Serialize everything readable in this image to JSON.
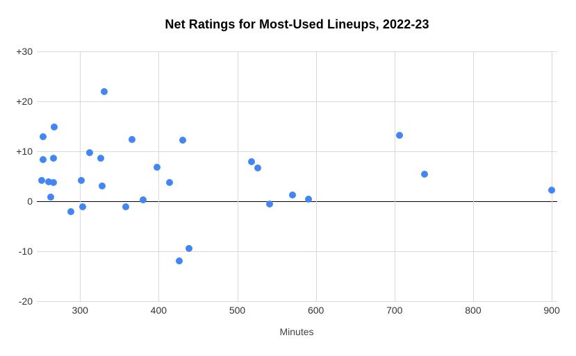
{
  "chart_data": {
    "type": "scatter",
    "title": "Net Ratings for Most-Used Lineups, 2022-23",
    "xlabel": "Minutes",
    "ylabel": "",
    "legend": "none",
    "grid": true,
    "xlim": [
      245,
      907
    ],
    "ylim": [
      -20,
      30
    ],
    "x_ticks": [
      {
        "value": 300,
        "label": "300"
      },
      {
        "value": 400,
        "label": "400"
      },
      {
        "value": 500,
        "label": "500"
      },
      {
        "value": 600,
        "label": "600"
      },
      {
        "value": 700,
        "label": "700"
      },
      {
        "value": 800,
        "label": "800"
      },
      {
        "value": 900,
        "label": "900"
      }
    ],
    "y_ticks": [
      {
        "value": 30,
        "label": "+30"
      },
      {
        "value": 20,
        "label": "+20"
      },
      {
        "value": 10,
        "label": "+10"
      },
      {
        "value": 0,
        "label": "0"
      },
      {
        "value": -10,
        "label": "-10"
      },
      {
        "value": -20,
        "label": "-20"
      }
    ],
    "series": [
      {
        "name": "Net Rating",
        "points": [
          {
            "x": 251,
            "y": 4.1
          },
          {
            "x": 253,
            "y": 12.9
          },
          {
            "x": 253,
            "y": 8.3
          },
          {
            "x": 260,
            "y": 3.9
          },
          {
            "x": 263,
            "y": 0.8
          },
          {
            "x": 267,
            "y": 14.8
          },
          {
            "x": 266,
            "y": 8.6
          },
          {
            "x": 266,
            "y": 3.7
          },
          {
            "x": 288,
            "y": -2.1
          },
          {
            "x": 302,
            "y": 4.1
          },
          {
            "x": 303,
            "y": -1.1
          },
          {
            "x": 312,
            "y": 9.7
          },
          {
            "x": 326,
            "y": 8.6
          },
          {
            "x": 328,
            "y": 3.0
          },
          {
            "x": 331,
            "y": 21.9
          },
          {
            "x": 358,
            "y": -1.1
          },
          {
            "x": 366,
            "y": 12.4
          },
          {
            "x": 380,
            "y": 0.3
          },
          {
            "x": 398,
            "y": 6.8
          },
          {
            "x": 414,
            "y": 3.8
          },
          {
            "x": 426,
            "y": -11.9
          },
          {
            "x": 431,
            "y": 12.2
          },
          {
            "x": 439,
            "y": -9.5
          },
          {
            "x": 518,
            "y": 7.9
          },
          {
            "x": 526,
            "y": 6.6
          },
          {
            "x": 541,
            "y": -0.6
          },
          {
            "x": 570,
            "y": 1.3
          },
          {
            "x": 591,
            "y": 0.4
          },
          {
            "x": 706,
            "y": 13.2
          },
          {
            "x": 738,
            "y": 5.4
          },
          {
            "x": 900,
            "y": 2.2
          }
        ]
      }
    ],
    "colors": {
      "point": "#4285f4",
      "gridline": "#d9d9d9",
      "zero_line": "#000000",
      "tick_text": "#333333",
      "axis_label_text": "#424242",
      "title_text": "#000000",
      "background": "#ffffff"
    }
  }
}
